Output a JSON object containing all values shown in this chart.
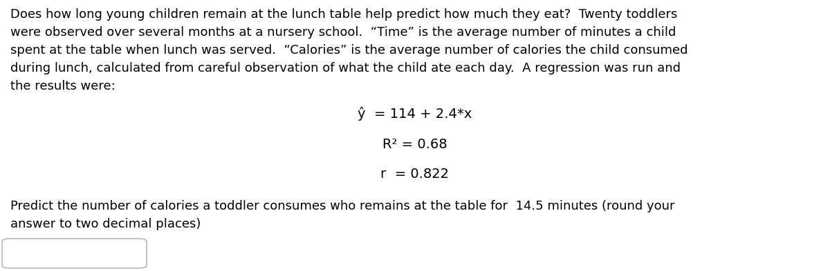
{
  "background_color": "#ffffff",
  "paragraph1_lines": [
    "Does how long young children remain at the lunch table help predict how much they eat?  Twenty toddlers",
    "were observed over several months at a nursery school.  “Time” is the average number of minutes a child",
    "spent at the table when lunch was served.  “Calories” is the average number of calories the child consumed",
    "during lunch, calculated from careful observation of what the child ate each day.  A regression was run and",
    "the results were:"
  ],
  "eq_y_hat": "ŷ  = 114 + 2.4*x",
  "eq_r2": "R² = 0.68",
  "eq_r": "r  = 0.822",
  "paragraph2_lines": [
    "Predict the number of calories a toddler consumes who remains at the table for  14.5 minutes (round your",
    "answer to two decimal places)"
  ],
  "font_size_body": 13.0,
  "font_size_eq": 14.0,
  "text_color": "#000000",
  "background_color_box": "#ffffff",
  "box_edge_color": "#aaaaaa"
}
